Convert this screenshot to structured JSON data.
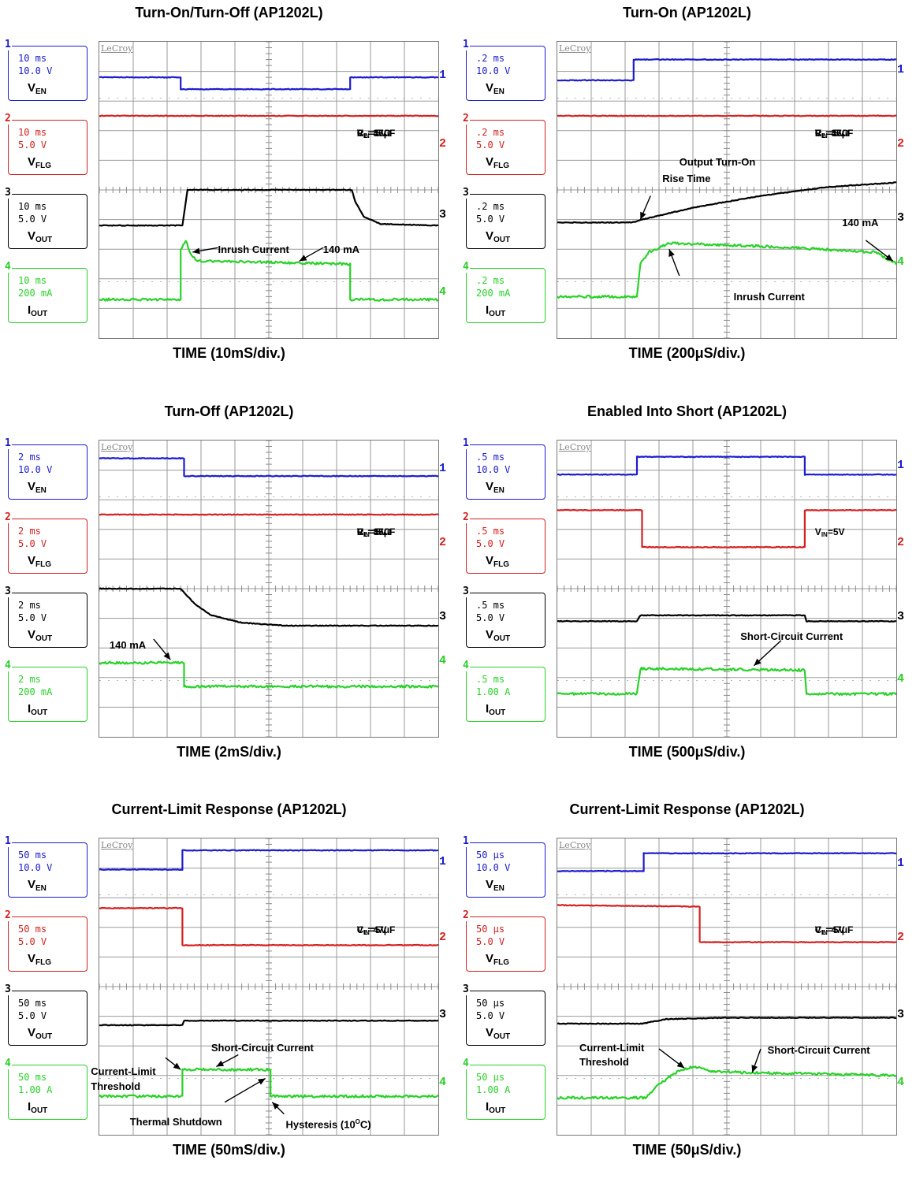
{
  "chart_data": [
    {
      "id": "p1",
      "type": "line",
      "title": "Turn-On/Turn-Off (AP1202L)",
      "xlabel": "TIME (10mS/div.)",
      "scope_brand": "LeCroy",
      "params": [
        "VIN=5V",
        "CL=47μF",
        "RL=35Ω"
      ],
      "channels": [
        {
          "num": "1",
          "signal": "EN",
          "color": "#1c1ccf",
          "time_div": "10 ms",
          "volt_div": "10.0 V",
          "ref_marker": "1",
          "ref_y": 1.2,
          "points": [
            [
              0,
              1.2
            ],
            [
              2.4,
              1.2
            ],
            [
              2.4,
              1.6
            ],
            [
              7.4,
              1.6
            ],
            [
              7.4,
              1.2
            ],
            [
              10,
              1.2
            ]
          ]
        },
        {
          "num": "2",
          "signal": "FLG",
          "color": "#d42020",
          "time_div": "10 ms",
          "volt_div": "5.0 V",
          "ref_marker": "2",
          "ref_y": 3.5,
          "points": [
            [
              0,
              2.5
            ],
            [
              10,
              2.5
            ]
          ]
        },
        {
          "num": "3",
          "signal": "OUT",
          "color": "#000000",
          "time_div": "10 ms",
          "volt_div": "5.0 V",
          "ref_marker": "3",
          "ref_y": 5.9,
          "points": [
            [
              0,
              6.2
            ],
            [
              2.45,
              6.2
            ],
            [
              2.6,
              5.0
            ],
            [
              7.45,
              5.0
            ],
            [
              7.55,
              5.4
            ],
            [
              7.8,
              5.9
            ],
            [
              8.3,
              6.15
            ],
            [
              10,
              6.2
            ]
          ]
        },
        {
          "num": "4",
          "signal": "OUT",
          "prefix": "I",
          "color": "#28d228",
          "time_div": "10 ms",
          "volt_div": "200 mA",
          "ref_marker": "4",
          "ref_y": 8.5,
          "points": [
            [
              0,
              8.7
            ],
            [
              2.4,
              8.7
            ],
            [
              2.4,
              7.0
            ],
            [
              2.55,
              6.7
            ],
            [
              2.7,
              7.2
            ],
            [
              2.9,
              7.4
            ],
            [
              7.4,
              7.5
            ],
            [
              7.4,
              8.7
            ],
            [
              10,
              8.7
            ]
          ]
        }
      ],
      "annotations": [
        {
          "text": "Inrush Current",
          "at": [
            3.5,
            6.75
          ],
          "arrow_from": [
            3.5,
            6.95
          ],
          "arrow_to": [
            2.75,
            7.1
          ]
        },
        {
          "text": "140 mA",
          "at": [
            6.6,
            6.75
          ],
          "arrow_from": [
            6.6,
            6.95
          ],
          "arrow_to": [
            5.9,
            7.4
          ]
        }
      ]
    },
    {
      "id": "p2",
      "type": "line",
      "title": "Turn-On (AP1202L)",
      "xlabel": "TIME (200μS/div.)",
      "scope_brand": "LeCroy",
      "params": [
        "VIN=5V",
        "CL=47μF",
        "RL=35Ω"
      ],
      "channels": [
        {
          "num": "1",
          "signal": "EN",
          "color": "#1c1ccf",
          "time_div": ".2 ms",
          "volt_div": "10.0 V",
          "ref_marker": "1",
          "ref_y": 1.0,
          "points": [
            [
              0,
              1.3
            ],
            [
              2.25,
              1.3
            ],
            [
              2.25,
              0.6
            ],
            [
              10,
              0.6
            ]
          ]
        },
        {
          "num": "2",
          "signal": "FLG",
          "color": "#d42020",
          "time_div": ".2 ms",
          "volt_div": "5.0 V",
          "ref_marker": "2",
          "ref_y": 3.5,
          "points": [
            [
              0,
              2.5
            ],
            [
              10,
              2.5
            ]
          ]
        },
        {
          "num": "3",
          "signal": "OUT",
          "color": "#000000",
          "time_div": ".2 ms",
          "volt_div": "5.0 V",
          "ref_marker": "3",
          "ref_y": 6.0,
          "points": [
            [
              0,
              6.1
            ],
            [
              2.2,
              6.1
            ],
            [
              2.5,
              6.0
            ],
            [
              4,
              5.6
            ],
            [
              6,
              5.2
            ],
            [
              8,
              4.9
            ],
            [
              10,
              4.75
            ]
          ]
        },
        {
          "num": "4",
          "signal": "OUT",
          "prefix": "I",
          "color": "#28d228",
          "time_div": ".2 ms",
          "volt_div": "200 mA",
          "ref_marker": "4",
          "ref_y": 7.5,
          "points": [
            [
              0,
              8.6
            ],
            [
              2.35,
              8.6
            ],
            [
              2.45,
              7.5
            ],
            [
              2.7,
              7.1
            ],
            [
              3.3,
              6.8
            ],
            [
              6,
              6.9
            ],
            [
              9.4,
              7.1
            ],
            [
              10,
              7.5
            ]
          ]
        }
      ],
      "annotations": [
        {
          "text": "Output Turn-On",
          "at": [
            3.6,
            3.8
          ],
          "arrow_from": [
            2.75,
            5.2
          ],
          "arrow_to": [
            2.45,
            6.0
          ]
        },
        {
          "text": "Rise Time",
          "at": [
            3.1,
            4.35
          ]
        },
        {
          "text": "140 mA",
          "at": [
            8.4,
            5.85
          ],
          "arrow_from": [
            9.1,
            6.7
          ],
          "arrow_to": [
            9.9,
            7.4
          ]
        },
        {
          "text": "Inrush Current",
          "at": [
            5.2,
            8.35
          ],
          "arrow_from": [
            3.6,
            7.9
          ],
          "arrow_to": [
            3.3,
            7.0
          ]
        }
      ]
    },
    {
      "id": "p3",
      "type": "line",
      "title": "Turn-Off (AP1202L)",
      "xlabel": "TIME (2mS/div.)",
      "scope_brand": "LeCroy",
      "params": [
        "VIN=5V",
        "CL=47μF",
        "RL=35Ω"
      ],
      "channels": [
        {
          "num": "1",
          "signal": "EN",
          "color": "#1c1ccf",
          "time_div": "2 ms",
          "volt_div": "10.0 V",
          "ref_marker": "1",
          "ref_y": 1.0,
          "points": [
            [
              0,
              0.6
            ],
            [
              2.5,
              0.6
            ],
            [
              2.5,
              1.2
            ],
            [
              10,
              1.2
            ]
          ]
        },
        {
          "num": "2",
          "signal": "FLG",
          "color": "#d42020",
          "time_div": "2 ms",
          "volt_div": "5.0 V",
          "ref_marker": "2",
          "ref_y": 3.5,
          "points": [
            [
              0,
              2.5
            ],
            [
              10,
              2.5
            ]
          ]
        },
        {
          "num": "3",
          "signal": "OUT",
          "color": "#000000",
          "time_div": "2 ms",
          "volt_div": "5.0 V",
          "ref_marker": "3",
          "ref_y": 6.0,
          "points": [
            [
              0,
              5.0
            ],
            [
              2.4,
              5.0
            ],
            [
              2.8,
              5.5
            ],
            [
              3.3,
              5.9
            ],
            [
              4.2,
              6.15
            ],
            [
              5.5,
              6.25
            ],
            [
              10,
              6.25
            ]
          ]
        },
        {
          "num": "4",
          "signal": "OUT",
          "prefix": "I",
          "color": "#28d228",
          "time_div": "2 ms",
          "volt_div": "200 mA",
          "ref_marker": "4",
          "ref_y": 7.5,
          "points": [
            [
              0,
              7.5
            ],
            [
              2.5,
              7.5
            ],
            [
              2.5,
              8.3
            ],
            [
              10,
              8.3
            ]
          ]
        }
      ],
      "annotations": [
        {
          "text": "140 mA",
          "at": [
            0.3,
            6.65
          ],
          "arrow_from": [
            1.6,
            6.7
          ],
          "arrow_to": [
            2.1,
            7.4
          ]
        }
      ]
    },
    {
      "id": "p4",
      "type": "line",
      "title": "Enabled Into Short (AP1202L)",
      "xlabel": "TIME (500μS/div.)",
      "scope_brand": "LeCroy",
      "params": [
        "VIN=5V"
      ],
      "channels": [
        {
          "num": "1",
          "signal": "EN",
          "color": "#1c1ccf",
          "time_div": ".5 ms",
          "volt_div": "10.0 V",
          "ref_marker": "1",
          "ref_y": 0.9,
          "points": [
            [
              0,
              1.15
            ],
            [
              2.35,
              1.15
            ],
            [
              2.35,
              0.55
            ],
            [
              7.3,
              0.55
            ],
            [
              7.3,
              1.15
            ],
            [
              10,
              1.15
            ]
          ]
        },
        {
          "num": "2",
          "signal": "FLG",
          "color": "#d42020",
          "time_div": ".5 ms",
          "volt_div": "5.0 V",
          "ref_marker": "2",
          "ref_y": 3.5,
          "points": [
            [
              0,
              2.35
            ],
            [
              2.5,
              2.35
            ],
            [
              2.5,
              3.6
            ],
            [
              7.3,
              3.6
            ],
            [
              7.3,
              2.35
            ],
            [
              10,
              2.35
            ]
          ]
        },
        {
          "num": "3",
          "signal": "OUT",
          "color": "#000000",
          "time_div": ".5 ms",
          "volt_div": "5.0 V",
          "ref_marker": "3",
          "ref_y": 6.0,
          "points": [
            [
              0,
              6.1
            ],
            [
              2.35,
              6.1
            ],
            [
              2.45,
              5.9
            ],
            [
              7.3,
              5.9
            ],
            [
              7.35,
              6.1
            ],
            [
              10,
              6.1
            ]
          ]
        },
        {
          "num": "4",
          "signal": "OUT",
          "prefix": "I",
          "color": "#28d228",
          "time_div": ".5 ms",
          "volt_div": "1.00 A",
          "ref_marker": "4",
          "ref_y": 8.1,
          "points": [
            [
              0,
              8.55
            ],
            [
              2.35,
              8.55
            ],
            [
              2.45,
              7.7
            ],
            [
              7.3,
              7.75
            ],
            [
              7.35,
              8.55
            ],
            [
              10,
              8.55
            ]
          ]
        }
      ],
      "annotations": [
        {
          "text": "Short-Circuit Current",
          "at": [
            5.4,
            6.35
          ],
          "arrow_from": [
            6.6,
            6.75
          ],
          "arrow_to": [
            5.8,
            7.6
          ]
        }
      ]
    },
    {
      "id": "p5",
      "type": "line",
      "title": "Current-Limit Response (AP1202L)",
      "xlabel": "TIME (50mS/div.)",
      "scope_brand": "LeCroy",
      "params": [
        "VIN=5V",
        "CL=47μF"
      ],
      "channels": [
        {
          "num": "1",
          "signal": "EN",
          "color": "#1c1ccf",
          "time_div": "50 ms",
          "volt_div": "10.0 V",
          "ref_marker": "1",
          "ref_y": 0.85,
          "points": [
            [
              0,
              1.05
            ],
            [
              2.45,
              1.05
            ],
            [
              2.45,
              0.4
            ],
            [
              10,
              0.4
            ]
          ]
        },
        {
          "num": "2",
          "signal": "FLG",
          "color": "#d42020",
          "time_div": "50 ms",
          "volt_div": "5.0 V",
          "ref_marker": "2",
          "ref_y": 3.4,
          "points": [
            [
              0,
              2.35
            ],
            [
              2.45,
              2.35
            ],
            [
              2.45,
              3.6
            ],
            [
              10,
              3.6
            ]
          ]
        },
        {
          "num": "3",
          "signal": "OUT",
          "color": "#000000",
          "time_div": "50 ms",
          "volt_div": "5.0 V",
          "ref_marker": "3",
          "ref_y": 6.0,
          "points": [
            [
              0,
              6.3
            ],
            [
              2.45,
              6.3
            ],
            [
              2.5,
              6.15
            ],
            [
              10,
              6.15
            ]
          ]
        },
        {
          "num": "4",
          "signal": "OUT",
          "prefix": "I",
          "color": "#28d228",
          "time_div": "50 ms",
          "volt_div": "1.00 A",
          "ref_marker": "4",
          "ref_y": 8.3,
          "points": [
            [
              0,
              8.7
            ],
            [
              2.45,
              8.7
            ],
            [
              2.45,
              7.8
            ],
            [
              5.05,
              7.8
            ],
            [
              5.05,
              8.7
            ],
            [
              10,
              8.7
            ]
          ]
        }
      ],
      "annotations": [
        {
          "text": "Short-Circuit Current",
          "at": [
            3.3,
            6.8
          ],
          "arrow_from": [
            4.1,
            7.3
          ],
          "arrow_to": [
            3.45,
            7.7
          ]
        },
        {
          "text": "Current-Limit",
          "at": [
            -0.25,
            7.6
          ],
          "arrow_from": [
            1.95,
            7.4
          ],
          "arrow_to": [
            2.4,
            7.8
          ]
        },
        {
          "text": "Threshold",
          "at": [
            -0.25,
            8.1
          ]
        },
        {
          "text": "Thermal Shutdown",
          "at": [
            0.9,
            9.3
          ],
          "arrow_from": [
            3.7,
            8.9
          ],
          "arrow_to": [
            4.9,
            8.1
          ]
        },
        {
          "text": "Hysteresis (10°C)",
          "at": [
            5.5,
            9.3
          ],
          "arrow_from": [
            5.45,
            9.3
          ],
          "arrow_to": [
            5.1,
            8.9
          ]
        }
      ]
    },
    {
      "id": "p6",
      "type": "line",
      "title": "Current-Limit Response (AP1202L)",
      "xlabel": "TIME (50μS/div.)",
      "scope_brand": "LeCroy",
      "params": [
        "VIN=5V",
        "CL=47μF"
      ],
      "channels": [
        {
          "num": "1",
          "signal": "EN",
          "color": "#1c1ccf",
          "time_div": "50 μs",
          "volt_div": "10.0 V",
          "ref_marker": "1",
          "ref_y": 0.9,
          "points": [
            [
              0,
              1.1
            ],
            [
              2.55,
              1.1
            ],
            [
              2.55,
              0.5
            ],
            [
              10,
              0.5
            ]
          ]
        },
        {
          "num": "2",
          "signal": "FLG",
          "color": "#d42020",
          "time_div": "50 μs",
          "volt_div": "5.0 V",
          "ref_marker": "2",
          "ref_y": 3.4,
          "points": [
            [
              0,
              2.25
            ],
            [
              4.2,
              2.3
            ],
            [
              4.2,
              3.5
            ],
            [
              10,
              3.5
            ]
          ]
        },
        {
          "num": "3",
          "signal": "OUT",
          "color": "#000000",
          "time_div": "50 μs",
          "volt_div": "5.0 V",
          "ref_marker": "3",
          "ref_y": 6.0,
          "points": [
            [
              0,
              6.25
            ],
            [
              2.5,
              6.25
            ],
            [
              3.2,
              6.1
            ],
            [
              5,
              6.05
            ],
            [
              10,
              6.05
            ]
          ]
        },
        {
          "num": "4",
          "signal": "OUT",
          "prefix": "I",
          "color": "#28d228",
          "time_div": "50 μs",
          "volt_div": "1.00 A",
          "ref_marker": "4",
          "ref_y": 8.3,
          "points": [
            [
              0,
              8.75
            ],
            [
              2.6,
              8.75
            ],
            [
              3.0,
              8.3
            ],
            [
              3.5,
              7.9
            ],
            [
              4.0,
              7.7
            ],
            [
              4.5,
              7.85
            ],
            [
              5.5,
              7.9
            ],
            [
              10,
              8.0
            ]
          ]
        }
      ],
      "annotations": [
        {
          "text": "Current-Limit",
          "at": [
            0.65,
            6.8
          ],
          "arrow_from": [
            3.0,
            7.1
          ],
          "arrow_to": [
            3.75,
            7.75
          ]
        },
        {
          "text": "Threshold",
          "at": [
            0.65,
            7.3
          ]
        },
        {
          "text": "Short-Circuit Current",
          "at": [
            6.2,
            6.9
          ],
          "arrow_from": [
            6.0,
            7.1
          ],
          "arrow_to": [
            5.75,
            7.9
          ]
        }
      ]
    }
  ]
}
